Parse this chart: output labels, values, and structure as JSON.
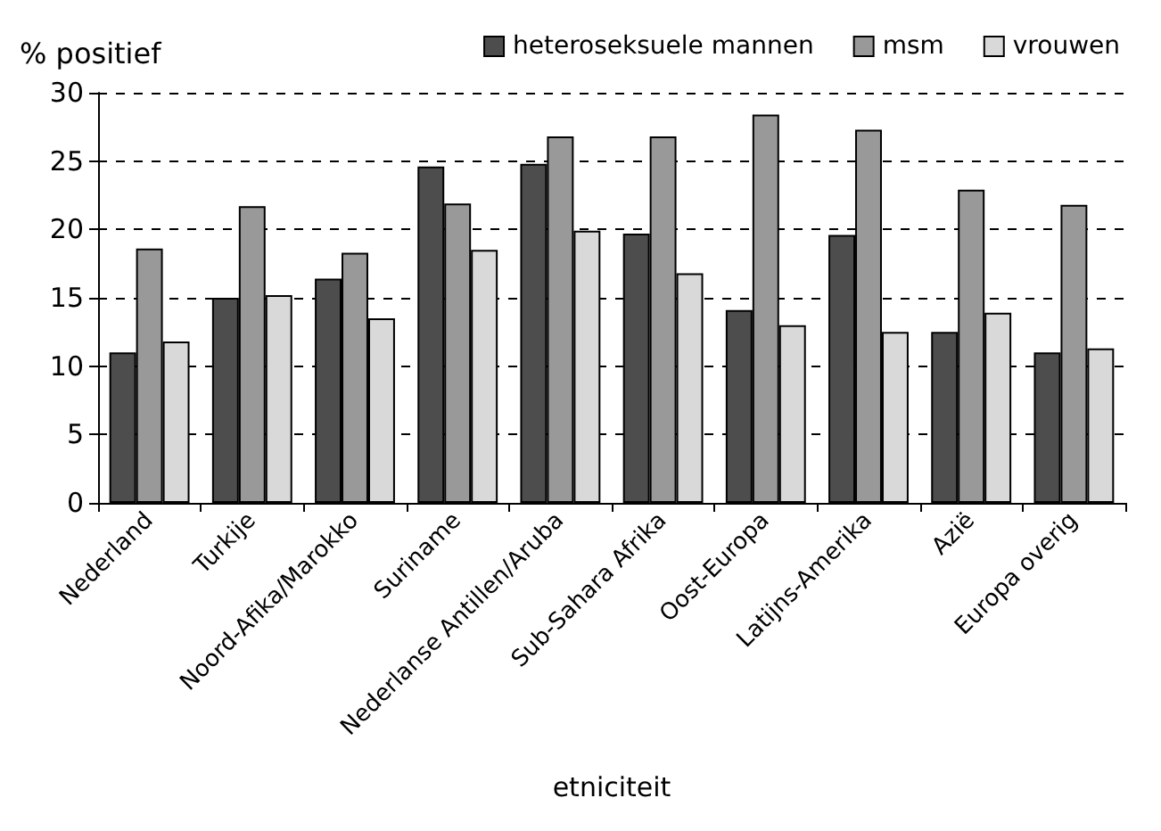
{
  "chart_data": {
    "type": "bar",
    "ylabel": "% positief",
    "xlabel": "etniciteit",
    "categories": [
      "Nederland",
      "Turkije",
      "Noord-Afika/Marokko",
      "Suriname",
      "Nederlanse Antillen/Aruba",
      "Sub-Sahara Afrika",
      "Oost-Europa",
      "Latijns-Amerika",
      "Azië",
      "Europa overig"
    ],
    "series": [
      {
        "name": "heteroseksuele mannen",
        "color": "#4d4d4d",
        "values": [
          11.0,
          15.0,
          16.4,
          24.6,
          24.8,
          19.7,
          14.1,
          19.6,
          12.5,
          11.0
        ]
      },
      {
        "name": "msm",
        "color": "#999999",
        "values": [
          18.6,
          21.7,
          18.3,
          21.9,
          26.8,
          26.8,
          28.4,
          27.3,
          22.9,
          21.8
        ]
      },
      {
        "name": "vrouwen",
        "color": "#d9d9d9",
        "values": [
          11.8,
          15.2,
          13.5,
          18.5,
          19.9,
          16.8,
          13.0,
          12.5,
          13.9,
          11.3
        ]
      }
    ],
    "ylim": [
      0,
      30
    ],
    "yticks": [
      0,
      5,
      10,
      15,
      20,
      25,
      30
    ],
    "grid": "y",
    "legend": "top right"
  }
}
